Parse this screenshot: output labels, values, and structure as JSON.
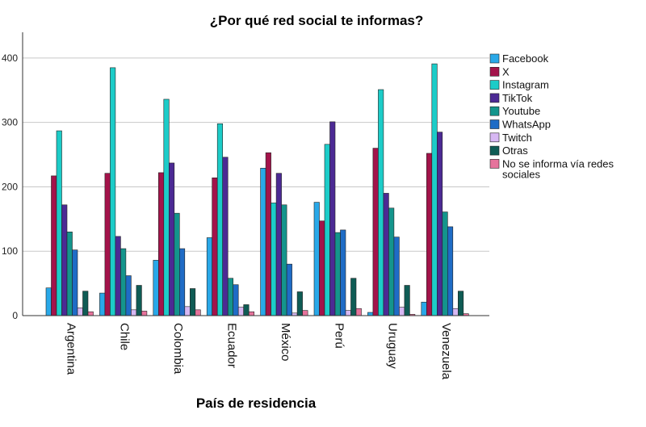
{
  "chart_data": {
    "type": "bar",
    "title": "¿Por qué red social te informas?",
    "xlabel": "País de residencia",
    "ylabel": "",
    "ylim": [
      0,
      440
    ],
    "yticks": [
      0,
      100,
      200,
      300,
      400
    ],
    "grid": true,
    "legend_position": "right",
    "categories": [
      "Argentina",
      "Chile",
      "Colombia",
      "Ecuador",
      "México",
      "Perú",
      "Uruguay",
      "Venezuela"
    ],
    "series": [
      {
        "name": "Facebook",
        "color": "#29a8e8",
        "values": [
          43,
          35,
          86,
          121,
          229,
          176,
          5,
          21
        ]
      },
      {
        "name": "X",
        "color": "#a3134a",
        "values": [
          217,
          221,
          222,
          214,
          253,
          147,
          260,
          252
        ]
      },
      {
        "name": "Instagram",
        "color": "#1cccc8",
        "values": [
          287,
          385,
          336,
          298,
          175,
          266,
          351,
          391
        ]
      },
      {
        "name": "TikTok",
        "color": "#4c2a94",
        "values": [
          172,
          123,
          237,
          246,
          221,
          301,
          190,
          285
        ]
      },
      {
        "name": "Youtube",
        "color": "#14958c",
        "values": [
          130,
          104,
          159,
          58,
          172,
          129,
          167,
          161
        ]
      },
      {
        "name": "WhatsApp",
        "color": "#1f6cc6",
        "values": [
          102,
          62,
          104,
          48,
          80,
          133,
          122,
          138
        ]
      },
      {
        "name": "Twitch",
        "color": "#d7b8f3",
        "values": [
          12,
          9,
          14,
          13,
          4,
          8,
          13,
          11
        ]
      },
      {
        "name": "Otras",
        "color": "#0f5c55",
        "values": [
          38,
          47,
          42,
          17,
          37,
          58,
          47,
          38
        ]
      },
      {
        "name": "No se informa vía redes sociales",
        "color": "#e6739c",
        "values": [
          6,
          7,
          9,
          6,
          8,
          11,
          2,
          3
        ]
      }
    ]
  }
}
